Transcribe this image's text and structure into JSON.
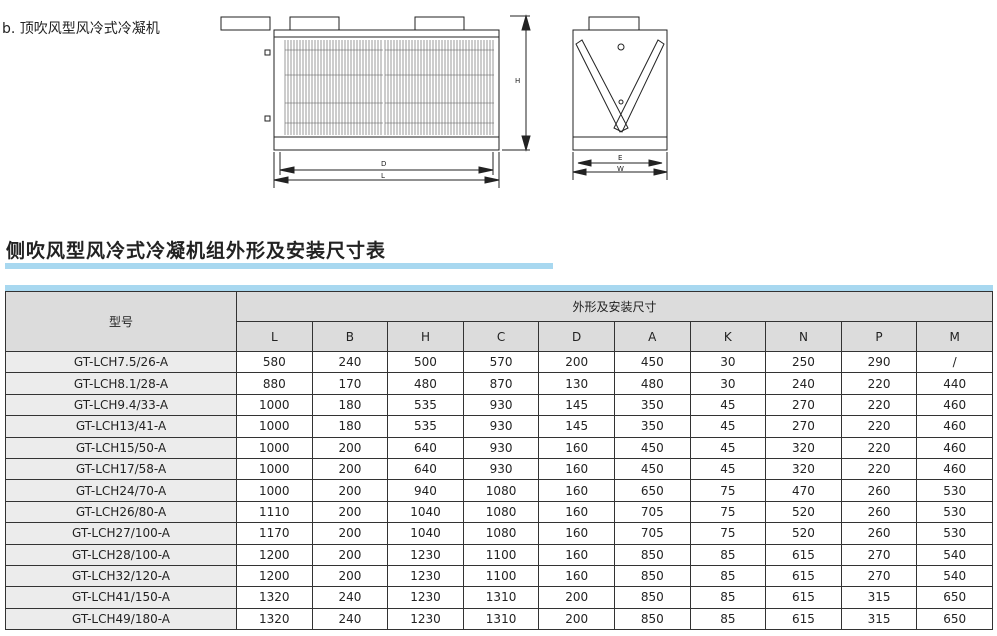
{
  "caption": "b. 顶吹风型风冷式冷凝机",
  "drawing": {
    "labels": {
      "H": "H",
      "D": "D",
      "L": "L",
      "E": "E",
      "W": "W"
    }
  },
  "title": "侧吹风型风冷式冷凝机组外形及安装尺寸表",
  "table": {
    "model_header": "型号",
    "group_header": "外形及安装尺寸",
    "columns": [
      "L",
      "B",
      "H",
      "C",
      "D",
      "A",
      "K",
      "N",
      "P",
      "M"
    ],
    "rows": [
      [
        "GT-LCH7.5/26-A",
        "580",
        "240",
        "500",
        "570",
        "200",
        "450",
        "30",
        "250",
        "290",
        "/"
      ],
      [
        "GT-LCH8.1/28-A",
        "880",
        "170",
        "480",
        "870",
        "130",
        "480",
        "30",
        "240",
        "220",
        "440"
      ],
      [
        "GT-LCH9.4/33-A",
        "1000",
        "180",
        "535",
        "930",
        "145",
        "350",
        "45",
        "270",
        "220",
        "460"
      ],
      [
        "GT-LCH13/41-A",
        "1000",
        "180",
        "535",
        "930",
        "145",
        "350",
        "45",
        "270",
        "220",
        "460"
      ],
      [
        "GT-LCH15/50-A",
        "1000",
        "200",
        "640",
        "930",
        "160",
        "450",
        "45",
        "320",
        "220",
        "460"
      ],
      [
        "GT-LCH17/58-A",
        "1000",
        "200",
        "640",
        "930",
        "160",
        "450",
        "45",
        "320",
        "220",
        "460"
      ],
      [
        "GT-LCH24/70-A",
        "1000",
        "200",
        "940",
        "1080",
        "160",
        "650",
        "75",
        "470",
        "260",
        "530"
      ],
      [
        "GT-LCH26/80-A",
        "1110",
        "200",
        "1040",
        "1080",
        "160",
        "705",
        "75",
        "520",
        "260",
        "530"
      ],
      [
        "GT-LCH27/100-A",
        "1170",
        "200",
        "1040",
        "1080",
        "160",
        "705",
        "75",
        "520",
        "260",
        "530"
      ],
      [
        "GT-LCH28/100-A",
        "1200",
        "200",
        "1230",
        "1100",
        "160",
        "850",
        "85",
        "615",
        "270",
        "540"
      ],
      [
        "GT-LCH32/120-A",
        "1200",
        "200",
        "1230",
        "1100",
        "160",
        "850",
        "85",
        "615",
        "270",
        "540"
      ],
      [
        "GT-LCH41/150-A",
        "1320",
        "240",
        "1230",
        "1310",
        "200",
        "850",
        "85",
        "615",
        "315",
        "650"
      ],
      [
        "GT-LCH49/180-A",
        "1320",
        "240",
        "1230",
        "1310",
        "200",
        "850",
        "85",
        "615",
        "315",
        "650"
      ]
    ]
  }
}
